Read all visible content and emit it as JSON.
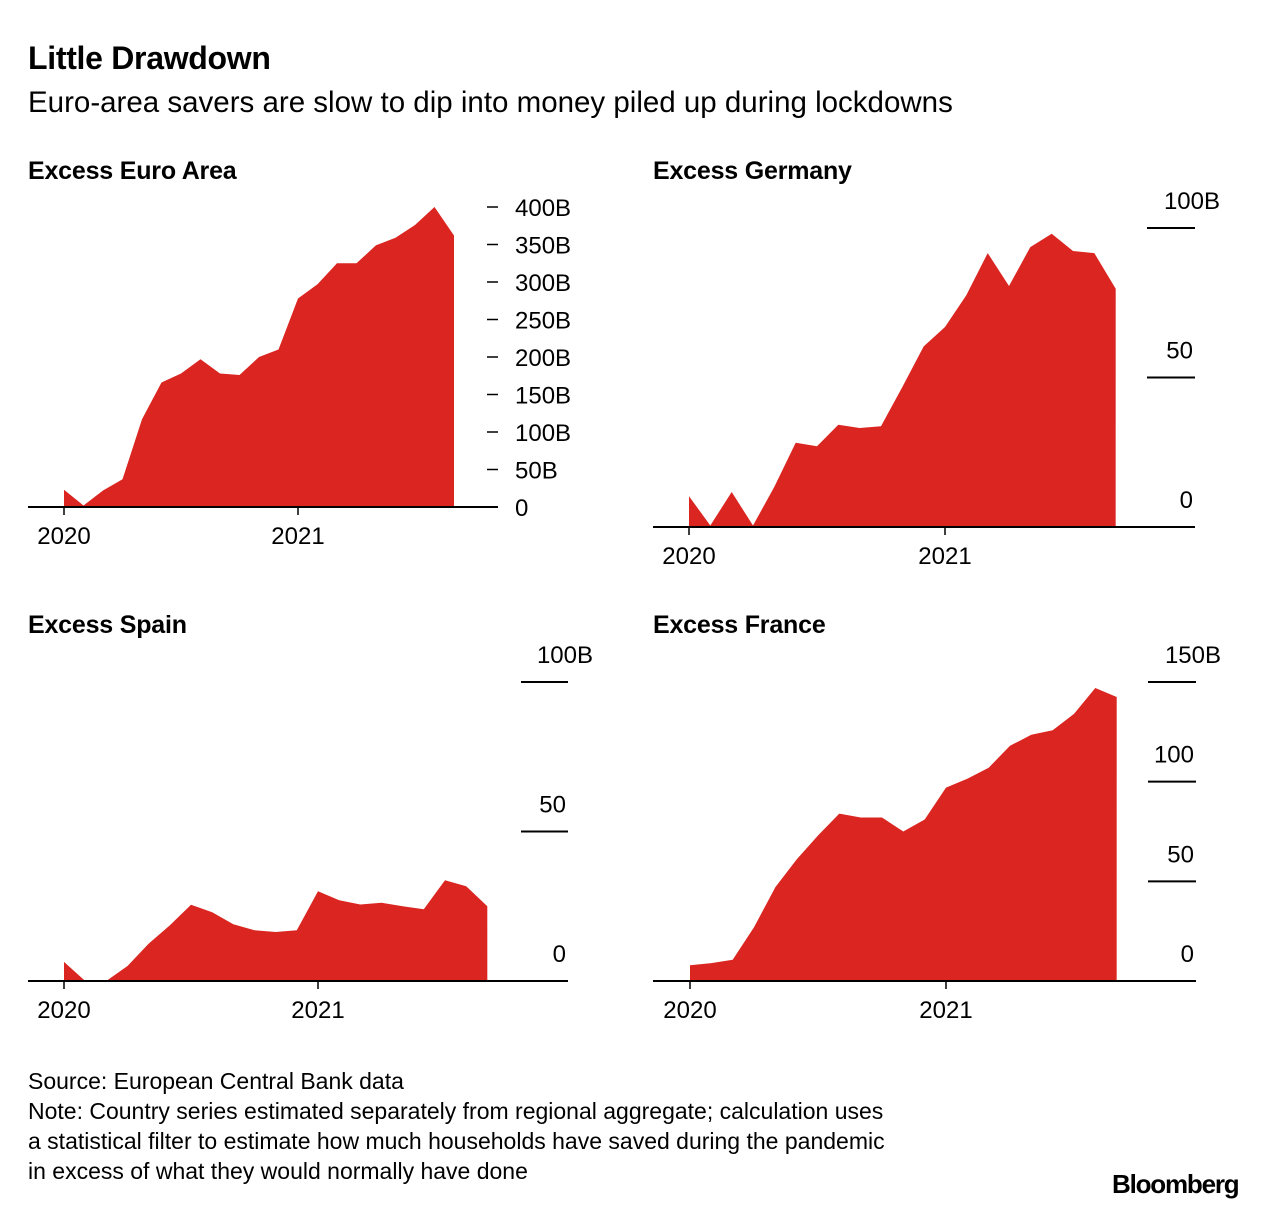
{
  "header": {
    "title": "Little Drawdown",
    "subtitle": "Euro-area savers are slow to dip into money piled up during lockdowns"
  },
  "footer": {
    "source": "Source: European Central Bank data",
    "note_lines": [
      "Note: Country series estimated separately from regional aggregate; calculation uses",
      "a statistical filter to estimate how much households have saved during the pandemic",
      "in excess of what they would normally have done"
    ],
    "logo": "Bloomberg"
  },
  "colors": {
    "fill": "#DA2520",
    "axis": "#000000"
  },
  "chart_data": [
    {
      "type": "area",
      "title": "Excess Euro Area",
      "x_tick_labels": [
        "2020",
        "2021"
      ],
      "y_ticks": [
        0,
        50,
        100,
        150,
        200,
        250,
        300,
        350,
        400
      ],
      "y_tick_labels": [
        "0",
        "50B",
        "100B",
        "150B",
        "200B",
        "250B",
        "300B",
        "350B",
        "400B"
      ],
      "ylim": [
        0,
        400
      ],
      "x": [
        "2020-01",
        "2020-02",
        "2020-03",
        "2020-04",
        "2020-05",
        "2020-06",
        "2020-07",
        "2020-08",
        "2020-09",
        "2020-10",
        "2020-11",
        "2020-12",
        "2021-01",
        "2021-02",
        "2021-03",
        "2021-04",
        "2021-05",
        "2021-06",
        "2021-07",
        "2021-08",
        "2021-09"
      ],
      "values": [
        23,
        2,
        22,
        37,
        117,
        166,
        178,
        197,
        178,
        176,
        200,
        210,
        278,
        297,
        325,
        325,
        349,
        359,
        376,
        400,
        362
      ]
    },
    {
      "type": "area",
      "title": "Excess Germany",
      "x_tick_labels": [
        "2020",
        "2021"
      ],
      "y_ticks": [
        0,
        50,
        100
      ],
      "y_tick_labels": [
        "0",
        "50",
        "100B"
      ],
      "ylim": [
        0,
        100
      ],
      "x": [
        "2020-01",
        "2020-02",
        "2020-03",
        "2020-04",
        "2020-05",
        "2020-06",
        "2020-07",
        "2020-08",
        "2020-09",
        "2020-10",
        "2020-11",
        "2020-12",
        "2021-01",
        "2021-02",
        "2021-03",
        "2021-04",
        "2021-05",
        "2021-06",
        "2021-07",
        "2021-08",
        "2021-09"
      ],
      "values": [
        10.3,
        0.5,
        11.7,
        0.5,
        13.4,
        28.2,
        27,
        34.2,
        33.1,
        33.7,
        46.8,
        60.4,
        66.9,
        77.5,
        91.6,
        80.6,
        93.6,
        98.1,
        92.3,
        91.6,
        79.7
      ]
    },
    {
      "type": "area",
      "title": "Excess Spain",
      "x_tick_labels": [
        "2020",
        "2021"
      ],
      "y_ticks": [
        0,
        50,
        100
      ],
      "y_tick_labels": [
        "0",
        "50",
        "100B"
      ],
      "ylim": [
        0,
        100
      ],
      "x": [
        "2020-01",
        "2020-02",
        "2020-03",
        "2020-04",
        "2020-05",
        "2020-06",
        "2020-07",
        "2020-08",
        "2020-09",
        "2020-10",
        "2020-11",
        "2020-12",
        "2021-01",
        "2021-02",
        "2021-03",
        "2021-04",
        "2021-05",
        "2021-06",
        "2021-07",
        "2021-08",
        "2021-09"
      ],
      "values": [
        6.4,
        0,
        0,
        5,
        12.5,
        18.6,
        25.5,
        23,
        19,
        17,
        16.4,
        17,
        30,
        27,
        25.6,
        26.2,
        25,
        24,
        33.7,
        31.7,
        25
      ]
    },
    {
      "type": "area",
      "title": "Excess France",
      "x_tick_labels": [
        "2020",
        "2021"
      ],
      "y_ticks": [
        0,
        50,
        100,
        150
      ],
      "y_tick_labels": [
        "0",
        "50",
        "100",
        "150B"
      ],
      "ylim": [
        0,
        150
      ],
      "x": [
        "2020-01",
        "2020-02",
        "2020-03",
        "2020-04",
        "2020-05",
        "2020-06",
        "2020-07",
        "2020-08",
        "2020-09",
        "2020-10",
        "2020-11",
        "2020-12",
        "2021-01",
        "2021-02",
        "2021-03",
        "2021-04",
        "2021-05",
        "2021-06",
        "2021-07",
        "2021-08",
        "2021-09"
      ],
      "values": [
        7.9,
        9,
        10.7,
        27,
        47,
        61,
        73,
        84,
        82,
        82,
        75,
        81,
        97,
        101.5,
        107,
        118,
        123.5,
        125.8,
        134,
        147,
        142.5
      ]
    }
  ]
}
